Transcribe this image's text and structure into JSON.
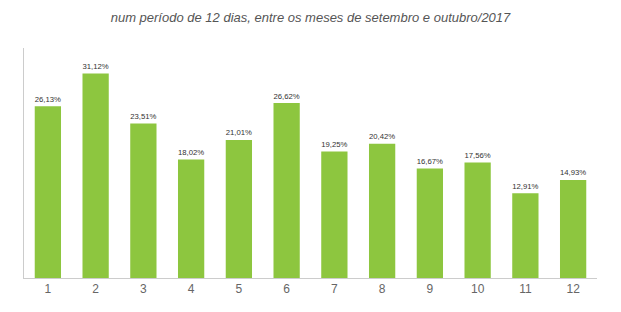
{
  "chart_data": {
    "type": "bar",
    "title": "num período de 12 dias, entre os meses de setembro e outubro/2017",
    "categories": [
      "1",
      "2",
      "3",
      "4",
      "5",
      "6",
      "7",
      "8",
      "9",
      "10",
      "11",
      "12"
    ],
    "values": [
      26.13,
      31.12,
      23.51,
      18.02,
      21.01,
      26.62,
      19.25,
      20.42,
      16.67,
      17.56,
      12.91,
      14.93
    ],
    "value_labels": [
      "26,13%",
      "31,12%",
      "23,51%",
      "18,02%",
      "21,01%",
      "26,62%",
      "19,25%",
      "20,42%",
      "16,67%",
      "17,56%",
      "12,91%",
      "14,93%"
    ],
    "color": "#8dc63f",
    "ylim": [
      0,
      35
    ],
    "data_labels": true,
    "tick_labels": "x",
    "grid": false
  }
}
